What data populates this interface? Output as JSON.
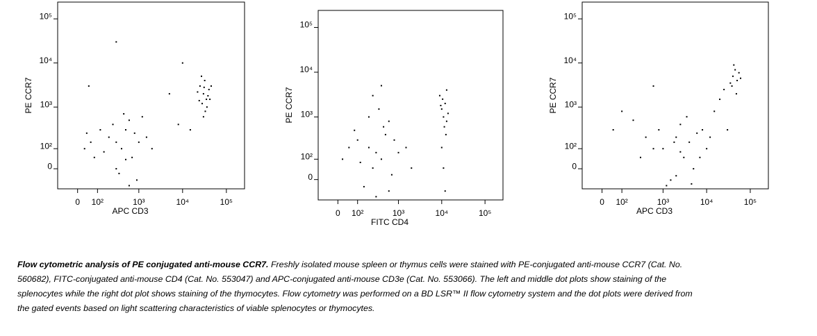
{
  "chart_data": [
    {
      "type": "scatter",
      "xlabel": "APC CD3",
      "ylabel": "PE CCR7",
      "scale": "biexponential",
      "color": "#000000",
      "xlim": [
        -100,
        260000
      ],
      "ylim": [
        -100,
        240000
      ],
      "xticks": [
        0,
        {
          "value": 100,
          "label": "10²"
        },
        {
          "value": 1000,
          "label": "10³"
        },
        {
          "value": 10000,
          "label": "10⁴"
        },
        {
          "value": 100000,
          "label": "10⁵"
        }
      ],
      "yticks": [
        0,
        {
          "value": 100,
          "label": "10²"
        },
        {
          "value": 1000,
          "label": "10³"
        },
        {
          "value": 10000,
          "label": "10⁴"
        },
        {
          "value": 100000,
          "label": "10⁵"
        }
      ],
      "x": [
        30000,
        35000,
        25000,
        40000,
        28000,
        32000,
        38000,
        22000,
        45000,
        33000,
        27000,
        36000,
        30000,
        42000,
        24000,
        31000,
        200,
        300,
        500,
        400,
        800,
        150,
        600,
        1000,
        250,
        700,
        350,
        900,
        120,
        60,
        30,
        1500,
        500,
        1200,
        80,
        450,
        2000,
        300,
        600,
        40,
        5000,
        8000,
        50,
        10000,
        300,
        15000
      ],
      "values": [
        2000,
        1500,
        3000,
        2500,
        1200,
        4000,
        1800,
        2200,
        3000,
        800,
        5000,
        1000,
        600,
        1500,
        1400,
        2800,
        200,
        150,
        300,
        100,
        250,
        80,
        500,
        150,
        400,
        50,
        -20,
        -50,
        300,
        150,
        100,
        200,
        40,
        600,
        50,
        700,
        100,
        0,
        -80,
        250,
        2000,
        400,
        3000,
        10000,
        30000,
        300
      ]
    },
    {
      "type": "scatter",
      "xlabel": "FITC CD4",
      "ylabel": "PE CCR7",
      "scale": "biexponential",
      "color": "#000000",
      "xlim": [
        -100,
        260000
      ],
      "ylim": [
        -100,
        240000
      ],
      "xticks": [
        0,
        {
          "value": 100,
          "label": "10²"
        },
        {
          "value": 1000,
          "label": "10³"
        },
        {
          "value": 10000,
          "label": "10⁴"
        },
        {
          "value": 100000,
          "label": "10⁵"
        }
      ],
      "yticks": [
        0,
        {
          "value": 100,
          "label": "10²"
        },
        {
          "value": 1000,
          "label": "10³"
        },
        {
          "value": 10000,
          "label": "10⁴"
        },
        {
          "value": 100000,
          "label": "10⁵"
        }
      ],
      "x": [
        200,
        300,
        100,
        400,
        500,
        250,
        150,
        600,
        50,
        700,
        350,
        800,
        20,
        300,
        1000,
        450,
        120,
        200,
        600,
        80,
        1500,
        250,
        400,
        2000,
        10000,
        12000,
        11000,
        9000,
        13000,
        10500,
        14000,
        11500,
        9500,
        12500,
        10000,
        11000,
        12000,
        13000
      ],
      "values": [
        200,
        150,
        300,
        100,
        400,
        50,
        -30,
        800,
        200,
        20,
        1500,
        300,
        100,
        -80,
        150,
        600,
        80,
        1000,
        -50,
        500,
        200,
        3000,
        5000,
        50,
        1500,
        2000,
        1000,
        3000,
        800,
        2500,
        1200,
        600,
        1800,
        400,
        200,
        50,
        -50,
        4000
      ]
    },
    {
      "type": "scatter",
      "xlabel": "APC CD3",
      "ylabel": "PE CCR7",
      "scale": "biexponential",
      "color": "#000000",
      "xlim": [
        -100,
        260000
      ],
      "ylim": [
        -100,
        240000
      ],
      "xticks": [
        0,
        {
          "value": 100,
          "label": "10²"
        },
        {
          "value": 1000,
          "label": "10³"
        },
        {
          "value": 10000,
          "label": "10⁴"
        },
        {
          "value": 100000,
          "label": "10⁵"
        }
      ],
      "yticks": [
        0,
        {
          "value": 100,
          "label": "10²"
        },
        {
          "value": 1000,
          "label": "10³"
        },
        {
          "value": 10000,
          "label": "10⁴"
        },
        {
          "value": 100000,
          "label": "10⁵"
        }
      ],
      "x": [
        1000,
        2000,
        3000,
        1500,
        4000,
        800,
        5000,
        2500,
        600,
        6000,
        1200,
        3500,
        7000,
        2000,
        400,
        10000,
        300,
        8000,
        1800,
        4500,
        200,
        2500,
        50,
        15000,
        20000,
        25000,
        35000,
        40000,
        50000,
        45000,
        55000,
        38000,
        60000,
        42000,
        48000,
        12000,
        30000,
        600,
        100
      ],
      "values": [
        100,
        200,
        50,
        -50,
        150,
        300,
        0,
        400,
        100,
        250,
        -80,
        600,
        50,
        -30,
        200,
        100,
        50,
        300,
        150,
        -70,
        500,
        80,
        300,
        800,
        1500,
        2500,
        3500,
        5000,
        4000,
        7000,
        6000,
        3000,
        4500,
        9000,
        2000,
        200,
        300,
        3000,
        800
      ]
    }
  ],
  "caption": {
    "lead": "Flow cytometric analysis of PE conjugated anti-mouse CCR7.",
    "text": "Freshly isolated mouse spleen or thymus cells were stained with PE-conjugated anti-mouse CCR7 (Cat. No. 560682), FITC-conjugated anti-mouse CD4 (Cat. No. 553047) and APC-conjugated anti-mouse CD3e (Cat. No. 553066). The left and middle dot plots show staining of the splenocytes while the right dot plot shows staining of the thymocytes.  Flow cytometry was performed on a BD LSR™ II flow cytometry system and the dot plots were derived from the gated events based on light scattering characteristics of viable splenocytes or thymocytes."
  }
}
